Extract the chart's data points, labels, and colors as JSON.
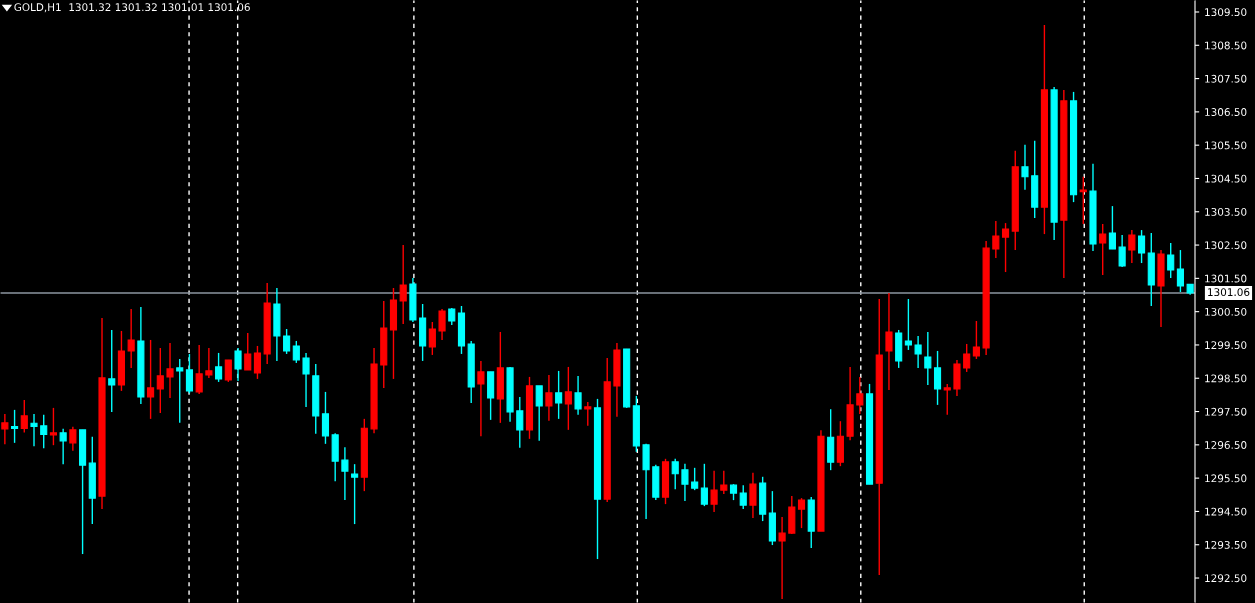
{
  "chart_data": {
    "type": "candlestick",
    "title": "GOLD,H1  1301.32 1301.32 1301.01 1301.06",
    "categories": [
      null,
      null,
      null,
      null,
      null,
      null,
      null,
      null,
      null,
      null,
      null,
      null,
      null,
      null,
      null,
      null,
      null,
      null,
      null,
      null,
      null,
      null,
      null,
      null,
      null,
      null,
      null,
      null,
      null,
      null,
      null,
      null,
      null,
      null,
      null,
      null,
      null,
      null,
      null,
      null,
      null,
      null,
      null,
      null,
      null,
      null,
      null,
      null,
      null,
      null,
      null,
      null,
      null,
      null,
      null,
      null,
      null,
      null,
      null,
      null,
      null,
      null,
      null,
      null,
      null,
      null,
      null,
      null,
      null,
      null,
      null,
      null,
      null,
      null,
      null,
      null,
      null,
      null,
      null,
      null,
      null,
      null,
      null,
      null,
      null,
      null,
      null,
      null,
      null,
      null,
      null,
      null,
      null,
      null,
      null,
      null,
      null,
      null,
      null,
      null,
      null,
      null,
      null,
      null,
      null,
      null,
      null,
      null,
      null,
      null,
      null,
      null,
      null,
      null,
      null,
      null,
      null,
      null,
      null,
      null,
      null,
      null,
      null
    ],
    "ohlc": [
      [
        1296.98,
        1297.43,
        1296.52,
        1297.16
      ],
      [
        1297.05,
        1297.55,
        1296.56,
        1296.99
      ],
      [
        1296.99,
        1297.85,
        1296.87,
        1297.37
      ],
      [
        1297.15,
        1297.43,
        1296.46,
        1297.05
      ],
      [
        1297.07,
        1297.4,
        1296.4,
        1296.81
      ],
      [
        1296.8,
        1297.61,
        1296.49,
        1296.86
      ],
      [
        1296.86,
        1296.98,
        1295.92,
        1296.62
      ],
      [
        1296.56,
        1297.04,
        1296.32,
        1296.95
      ],
      [
        1296.95,
        1296.95,
        1293.22,
        1295.89
      ],
      [
        1295.95,
        1296.74,
        1294.12,
        1294.9
      ],
      [
        1294.96,
        1300.31,
        1294.57,
        1298.51
      ],
      [
        1298.48,
        1299.95,
        1297.49,
        1298.3
      ],
      [
        1298.3,
        1299.92,
        1298.12,
        1299.32
      ],
      [
        1299.32,
        1300.58,
        1298.81,
        1299.65
      ],
      [
        1299.62,
        1300.64,
        1297.73,
        1297.94
      ],
      [
        1297.94,
        1299.65,
        1297.28,
        1298.21
      ],
      [
        1298.18,
        1299.41,
        1297.46,
        1298.57
      ],
      [
        1298.54,
        1299.56,
        1297.91,
        1298.78
      ],
      [
        1298.81,
        1299.08,
        1297.16,
        1298.72
      ],
      [
        1298.75,
        1299.23,
        1298.05,
        1298.12
      ],
      [
        1298.09,
        1299.5,
        1298.03,
        1298.63
      ],
      [
        1298.6,
        1299.41,
        1298.51,
        1298.72
      ],
      [
        1298.84,
        1299.26,
        1298.39,
        1298.48
      ],
      [
        1298.45,
        1299.05,
        1298.39,
        1299.05
      ],
      [
        1299.32,
        1299.41,
        1298.42,
        1298.78
      ],
      [
        1298.75,
        1299.86,
        1298.75,
        1299.23
      ],
      [
        1298.66,
        1299.47,
        1298.48,
        1299.26
      ],
      [
        1299.23,
        1301.36,
        1298.93,
        1300.76
      ],
      [
        1300.73,
        1301.21,
        1299.02,
        1299.77
      ],
      [
        1299.77,
        1299.98,
        1299.23,
        1299.32
      ],
      [
        1299.47,
        1299.62,
        1298.96,
        1299.05
      ],
      [
        1299.11,
        1299.26,
        1297.64,
        1298.63
      ],
      [
        1298.57,
        1298.93,
        1296.83,
        1297.37
      ],
      [
        1297.43,
        1298.09,
        1296.53,
        1296.77
      ],
      [
        1296.8,
        1296.85,
        1295.41,
        1296.01
      ],
      [
        1296.04,
        1296.43,
        1294.84,
        1295.71
      ],
      [
        1295.62,
        1295.92,
        1294.12,
        1295.53
      ],
      [
        1295.53,
        1297.28,
        1295.11,
        1297.0
      ],
      [
        1296.98,
        1299.41,
        1296.85,
        1298.93
      ],
      [
        1298.9,
        1300.82,
        1298.21,
        1300.01
      ],
      [
        1299.95,
        1301.21,
        1298.48,
        1300.85
      ],
      [
        1300.82,
        1302.5,
        1300.13,
        1301.3
      ],
      [
        1301.33,
        1301.51,
        1300.19,
        1300.25
      ],
      [
        1300.31,
        1300.73,
        1299.02,
        1299.47
      ],
      [
        1299.44,
        1300.19,
        1299.2,
        1299.98
      ],
      [
        1299.92,
        1300.58,
        1299.65,
        1300.52
      ],
      [
        1300.58,
        1300.61,
        1300.1,
        1300.22
      ],
      [
        1300.46,
        1300.67,
        1299.23,
        1299.47
      ],
      [
        1299.53,
        1299.62,
        1297.76,
        1298.24
      ],
      [
        1298.33,
        1299.02,
        1296.76,
        1298.69
      ],
      [
        1298.69,
        1298.69,
        1297.25,
        1297.91
      ],
      [
        1297.88,
        1299.89,
        1297.16,
        1298.81
      ],
      [
        1298.81,
        1298.84,
        1297.19,
        1297.49
      ],
      [
        1297.52,
        1297.94,
        1296.41,
        1296.95
      ],
      [
        1296.95,
        1298.54,
        1296.68,
        1298.27
      ],
      [
        1298.27,
        1298.27,
        1296.62,
        1297.67
      ],
      [
        1297.67,
        1298.6,
        1297.22,
        1298.06
      ],
      [
        1298.06,
        1298.72,
        1297.28,
        1297.76
      ],
      [
        1297.73,
        1298.84,
        1296.95,
        1298.09
      ],
      [
        1298.06,
        1298.57,
        1297.4,
        1297.58
      ],
      [
        1297.58,
        1297.79,
        1297.07,
        1297.64
      ],
      [
        1297.61,
        1297.88,
        1293.07,
        1294.87
      ],
      [
        1294.87,
        1299.11,
        1294.78,
        1298.39
      ],
      [
        1298.27,
        1299.56,
        1297.34,
        1299.35
      ],
      [
        1299.38,
        1299.38,
        1297.61,
        1297.64
      ],
      [
        1297.67,
        1297.97,
        1296.29,
        1296.47
      ],
      [
        1296.5,
        1296.53,
        1294.27,
        1295.75
      ],
      [
        1295.84,
        1295.9,
        1294.84,
        1294.93
      ],
      [
        1294.93,
        1296.08,
        1294.72,
        1295.99
      ],
      [
        1295.99,
        1296.08,
        1295.17,
        1295.63
      ],
      [
        1295.75,
        1295.93,
        1294.81,
        1295.32
      ],
      [
        1295.38,
        1295.81,
        1295.14,
        1295.2
      ],
      [
        1295.2,
        1295.93,
        1294.66,
        1294.72
      ],
      [
        1294.72,
        1295.72,
        1294.48,
        1295.14
      ],
      [
        1295.14,
        1295.72,
        1295.02,
        1295.29
      ],
      [
        1295.29,
        1295.32,
        1294.84,
        1295.05
      ],
      [
        1295.05,
        1295.29,
        1294.57,
        1294.69
      ],
      [
        1294.69,
        1295.66,
        1294.3,
        1295.32
      ],
      [
        1295.35,
        1295.54,
        1294.21,
        1294.42
      ],
      [
        1294.45,
        1295.11,
        1293.49,
        1293.61
      ],
      [
        1293.61,
        1294.33,
        1291.87,
        1293.85
      ],
      [
        1293.85,
        1294.96,
        1293.82,
        1294.63
      ],
      [
        1294.57,
        1294.9,
        1294.0,
        1294.84
      ],
      [
        1294.84,
        1294.93,
        1293.4,
        1293.91
      ],
      [
        1293.91,
        1296.94,
        1293.91,
        1296.76
      ],
      [
        1296.73,
        1297.57,
        1295.74,
        1295.98
      ],
      [
        1295.98,
        1297.21,
        1295.86,
        1296.76
      ],
      [
        1296.76,
        1298.84,
        1296.64,
        1297.7
      ],
      [
        1297.7,
        1298.54,
        1297.43,
        1298.03
      ],
      [
        1298.03,
        1298.33,
        1295.32,
        1295.32
      ],
      [
        1295.35,
        1300.88,
        1292.59,
        1299.2
      ],
      [
        1299.32,
        1301.06,
        1298.15,
        1299.89
      ],
      [
        1299.86,
        1299.95,
        1298.81,
        1299.02
      ],
      [
        1299.62,
        1300.88,
        1299.35,
        1299.5
      ],
      [
        1299.5,
        1299.77,
        1298.81,
        1299.23
      ],
      [
        1299.14,
        1299.89,
        1298.3,
        1298.81
      ],
      [
        1298.81,
        1299.32,
        1297.7,
        1298.18
      ],
      [
        1298.15,
        1298.33,
        1297.4,
        1298.21
      ],
      [
        1298.18,
        1299.05,
        1297.97,
        1298.93
      ],
      [
        1298.81,
        1299.53,
        1298.69,
        1299.23
      ],
      [
        1299.17,
        1300.22,
        1299.08,
        1299.44
      ],
      [
        1299.41,
        1302.62,
        1299.2,
        1302.41
      ],
      [
        1302.38,
        1303.22,
        1302.11,
        1302.77
      ],
      [
        1302.74,
        1303.16,
        1301.69,
        1302.98
      ],
      [
        1302.92,
        1305.33,
        1302.35,
        1304.85
      ],
      [
        1304.85,
        1305.51,
        1304.16,
        1304.55
      ],
      [
        1304.58,
        1305.63,
        1303.31,
        1303.64
      ],
      [
        1303.64,
        1309.11,
        1302.83,
        1307.16
      ],
      [
        1307.16,
        1307.25,
        1302.65,
        1303.19
      ],
      [
        1303.25,
        1307.16,
        1301.51,
        1306.83
      ],
      [
        1306.83,
        1307.1,
        1303.79,
        1304.01
      ],
      [
        1304.1,
        1304.55,
        1303.13,
        1304.15
      ],
      [
        1304.12,
        1304.94,
        1302.32,
        1302.53
      ],
      [
        1302.56,
        1303.13,
        1301.6,
        1302.83
      ],
      [
        1302.86,
        1303.67,
        1302.38,
        1302.38
      ],
      [
        1302.44,
        1302.8,
        1301.84,
        1301.87
      ],
      [
        1302.35,
        1302.95,
        1301.96,
        1302.8
      ],
      [
        1302.77,
        1302.95,
        1301.96,
        1302.26
      ],
      [
        1302.26,
        1302.86,
        1300.67,
        1301.3
      ],
      [
        1301.27,
        1302.35,
        1300.04,
        1302.23
      ],
      [
        1302.2,
        1302.56,
        1301.51,
        1301.75
      ],
      [
        1301.78,
        1302.35,
        1301.09,
        1301.27
      ],
      [
        1301.32,
        1301.32,
        1301.01,
        1301.06
      ]
    ],
    "colors": [
      "#ff0000",
      "#00ffff",
      "#ff0000",
      "#00ffff",
      "#00ffff",
      "#ff0000",
      "#00ffff",
      "#ff0000",
      "#00ffff",
      "#00ffff",
      "#ff0000",
      "#00ffff",
      "#ff0000",
      "#ff0000",
      "#00ffff",
      "#ff0000",
      "#ff0000",
      "#ff0000",
      "#00ffff",
      "#00ffff",
      "#ff0000",
      "#ff0000",
      "#00ffff",
      "#ff0000",
      "#00ffff",
      "#ff0000",
      "#ff0000",
      "#ff0000",
      "#00ffff",
      "#00ffff",
      "#00ffff",
      "#00ffff",
      "#00ffff",
      "#00ffff",
      "#00ffff",
      "#00ffff",
      "#00ffff",
      "#ff0000",
      "#ff0000",
      "#ff0000",
      "#ff0000",
      "#ff0000",
      "#00ffff",
      "#00ffff",
      "#ff0000",
      "#ff0000",
      "#00ffff",
      "#00ffff",
      "#00ffff",
      "#ff0000",
      "#00ffff",
      "#ff0000",
      "#00ffff",
      "#00ffff",
      "#ff0000",
      "#00ffff",
      "#ff0000",
      "#00ffff",
      "#ff0000",
      "#00ffff",
      "#ff0000",
      "#00ffff",
      "#ff0000",
      "#ff0000",
      "#00ffff",
      "#00ffff",
      "#00ffff",
      "#00ffff",
      "#ff0000",
      "#00ffff",
      "#00ffff",
      "#00ffff",
      "#00ffff",
      "#ff0000",
      "#ff0000",
      "#00ffff",
      "#00ffff",
      "#ff0000",
      "#00ffff",
      "#00ffff",
      "#ff0000",
      "#ff0000",
      "#ff0000",
      "#00ffff",
      "#ff0000",
      "#00ffff",
      "#ff0000",
      "#ff0000",
      "#ff0000",
      "#00ffff",
      "#ff0000",
      "#ff0000",
      "#00ffff",
      "#00ffff",
      "#00ffff",
      "#00ffff",
      "#00ffff",
      "#ff0000",
      "#ff0000",
      "#ff0000",
      "#ff0000",
      "#ff0000",
      "#ff0000",
      "#ff0000",
      "#ff0000",
      "#00ffff",
      "#00ffff",
      "#ff0000",
      "#00ffff",
      "#ff0000",
      "#00ffff",
      "#ff0000",
      "#00ffff",
      "#ff0000",
      "#00ffff",
      "#00ffff",
      "#ff0000",
      "#00ffff",
      "#00ffff",
      "#ff0000",
      "#00ffff",
      "#00ffff",
      "#00ffff"
    ],
    "ylim": [
      1291.75,
      1309.86
    ],
    "yticks": [
      {
        "value": 1292.5,
        "label": "1292.50"
      },
      {
        "value": 1293.5,
        "label": "1293.50"
      },
      {
        "value": 1294.5,
        "label": "1294.50"
      },
      {
        "value": 1295.5,
        "label": "1295.50"
      },
      {
        "value": 1296.5,
        "label": "1296.50"
      },
      {
        "value": 1297.5,
        "label": "1297.50"
      },
      {
        "value": 1298.5,
        "label": "1298.50"
      },
      {
        "value": 1299.5,
        "label": "1299.50"
      },
      {
        "value": 1300.5,
        "label": "1300.50"
      },
      {
        "value": 1301.5,
        "label": "1301.50"
      },
      {
        "value": 1302.5,
        "label": "1302.50"
      },
      {
        "value": 1303.5,
        "label": "1303.50"
      },
      {
        "value": 1304.5,
        "label": "1304.50"
      },
      {
        "value": 1305.5,
        "label": "1305.50"
      },
      {
        "value": 1306.5,
        "label": "1306.50"
      },
      {
        "value": 1307.5,
        "label": "1307.50"
      },
      {
        "value": 1308.5,
        "label": "1308.50"
      },
      {
        "value": 1309.5,
        "label": "1309.50"
      }
    ],
    "ref_lines": [
      {
        "axis": "y",
        "value": 1301.06,
        "label": "1301.06",
        "color": "#8c96a0",
        "line_style": "solid"
      }
    ],
    "tick_labels": "y"
  }
}
